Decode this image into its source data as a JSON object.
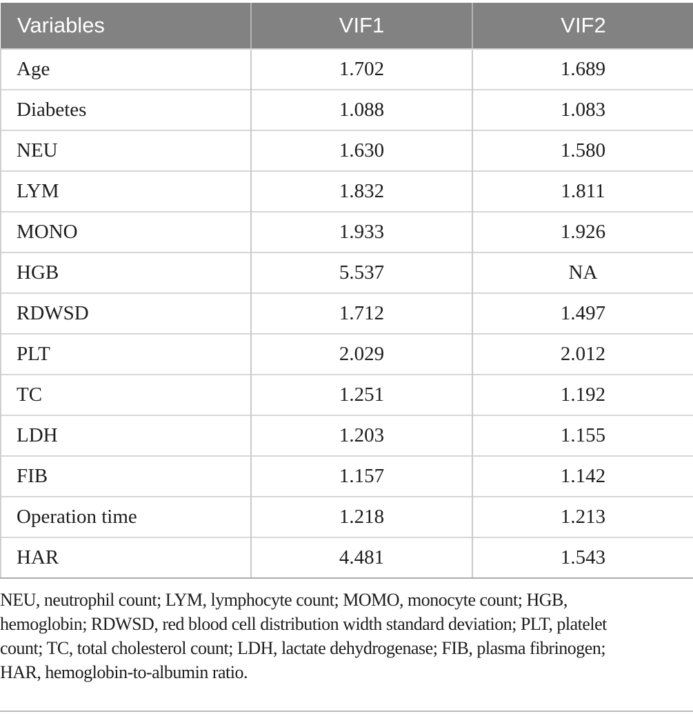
{
  "colors": {
    "header_background": "#828282",
    "header_text": "#ffffff",
    "body_text": "#1c1c1c",
    "grid_line": "#c9c9c9",
    "row_separator": "#d6d6d6",
    "table_bottom_border": "#ababab",
    "bottom_rule": "#b9b9b9"
  },
  "table": {
    "columns": [
      "Variables",
      "VIF1",
      "VIF2"
    ],
    "rows": [
      [
        "Age",
        "1.702",
        "1.689"
      ],
      [
        "Diabetes",
        "1.088",
        "1.083"
      ],
      [
        "NEU",
        "1.630",
        "1.580"
      ],
      [
        "LYM",
        "1.832",
        "1.811"
      ],
      [
        "MONO",
        "1.933",
        "1.926"
      ],
      [
        "HGB",
        "5.537",
        "NA"
      ],
      [
        "RDWSD",
        "1.712",
        "1.497"
      ],
      [
        "PLT",
        "2.029",
        "2.012"
      ],
      [
        "TC",
        "1.251",
        "1.192"
      ],
      [
        "LDH",
        "1.203",
        "1.155"
      ],
      [
        "FIB",
        "1.157",
        "1.142"
      ],
      [
        "Operation time",
        "1.218",
        "1.213"
      ],
      [
        "HAR",
        "4.481",
        "1.543"
      ]
    ]
  },
  "footnote": {
    "lines": [
      "NEU, neutrophil count; LYM, lymphocyte count; MOMO, monocyte count; HGB,",
      "hemoglobin; RDWSD, red blood cell distribution width standard deviation; PLT, platelet",
      "count; TC, total cholesterol count; LDH, lactate dehydrogenase; FIB, plasma fibrinogen;",
      "HAR, hemoglobin-to-albumin ratio."
    ],
    "full_text": "NEU, neutrophil count; LYM, lymphocyte count; MOMO, monocyte count; HGB, hemoglobin; RDWSD, red blood cell distribution width standard deviation; PLT, platelet count; TC, total cholesterol count; LDH, lactate dehydrogenase; FIB, plasma fibrinogen; HAR, hemoglobin-to-albumin ratio."
  }
}
